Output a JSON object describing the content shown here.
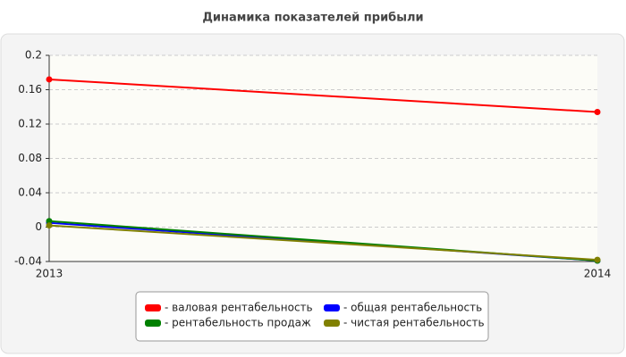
{
  "chart_data": {
    "type": "line",
    "title": "Динамика показателей прибыли",
    "categories": [
      "2013",
      "2014"
    ],
    "series": [
      {
        "name": "- валовая рентабельность",
        "color": "#ff0000",
        "values": [
          0.172,
          0.134
        ]
      },
      {
        "name": "- общая рентабельность",
        "color": "#0000ff",
        "values": [
          0.005,
          -0.039
        ]
      },
      {
        "name": "- рентабельность продаж",
        "color": "#008000",
        "values": [
          0.007,
          -0.039
        ]
      },
      {
        "name": "- чистая рентабельность",
        "color": "#808000",
        "values": [
          0.002,
          -0.038
        ]
      }
    ],
    "ylim": [
      -0.04,
      0.2
    ],
    "yticks": [
      -0.04,
      0,
      0.04,
      0.08,
      0.12,
      0.16,
      0.2
    ],
    "grid": true
  }
}
